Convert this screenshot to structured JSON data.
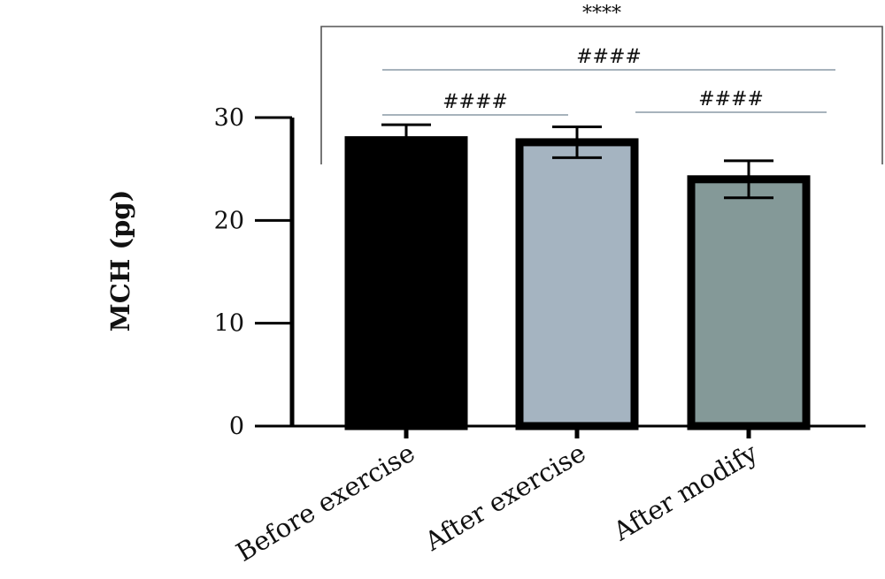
{
  "chart_data": {
    "type": "bar",
    "title": "",
    "ylabel": "MCH (pg)",
    "xlabel": "",
    "ylim": [
      0,
      30
    ],
    "yticks": [
      0,
      10,
      20,
      30
    ],
    "categories": [
      "Before exercise",
      "After exercise",
      "After modify"
    ],
    "values": [
      27.8,
      27.6,
      24.0
    ],
    "error": [
      1.5,
      1.5,
      1.8
    ],
    "colors": [
      "#000000",
      "#a5b4c1",
      "#849998"
    ],
    "significance": [
      {
        "label": "####",
        "from": 0,
        "to": 1
      },
      {
        "label": "####",
        "from": 1,
        "to": 2
      },
      {
        "label": "####",
        "from": 0,
        "to": 2
      },
      {
        "label": "****",
        "from": 0,
        "to": 2,
        "style": "bracket"
      }
    ]
  }
}
